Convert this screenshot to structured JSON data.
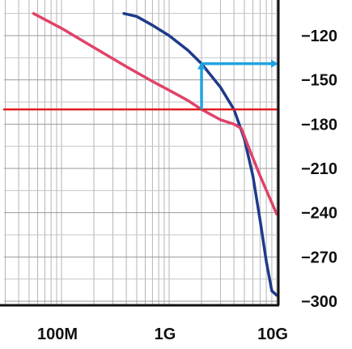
{
  "chart_data": {
    "type": "line",
    "title": "",
    "xlabel": "",
    "ylabel": "",
    "x_scale": "log",
    "x_range_hz": [
      10000000,
      10000000000
    ],
    "y_range": [
      -300,
      -105
    ],
    "x_tick_labels": [
      "100M",
      "1G",
      "10G"
    ],
    "x_tick_values": [
      100000000,
      1000000000,
      10000000000
    ],
    "y_tick_labels": [
      "−120",
      "−150",
      "−180",
      "−210",
      "−240",
      "−270",
      "−300"
    ],
    "y_tick_values": [
      -120,
      -150,
      -180,
      -210,
      -240,
      -270,
      -300
    ],
    "grid": true,
    "legend": "none",
    "series": [
      {
        "color": "#1e3a8a",
        "points": [
          [
            380000000,
            -105
          ],
          [
            500000000,
            -107
          ],
          [
            700000000,
            -113
          ],
          [
            1000000000,
            -120
          ],
          [
            1500000000,
            -130
          ],
          [
            2000000000,
            -139
          ],
          [
            3000000000,
            -155
          ],
          [
            4000000000,
            -170
          ],
          [
            5000000000,
            -190
          ],
          [
            6000000000,
            -215
          ],
          [
            7000000000,
            -245
          ],
          [
            8000000000,
            -273
          ],
          [
            9000000000,
            -293
          ],
          [
            10000000000,
            -296
          ]
        ]
      },
      {
        "color": "#e0426a",
        "points": [
          [
            55000000,
            -105
          ],
          [
            100000000,
            -115
          ],
          [
            200000000,
            -128
          ],
          [
            400000000,
            -141
          ],
          [
            700000000,
            -151
          ],
          [
            1000000000,
            -157
          ],
          [
            1500000000,
            -164
          ],
          [
            2000000000,
            -170
          ],
          [
            3000000000,
            -177
          ],
          [
            4000000000,
            -180
          ],
          [
            4700000000,
            -183
          ],
          [
            5500000000,
            -196
          ],
          [
            7000000000,
            -215
          ],
          [
            10000000000,
            -241
          ]
        ]
      },
      {
        "color": "#e11d1d",
        "points": [
          [
            10000000,
            -170
          ],
          [
            10000000000,
            -170
          ]
        ]
      }
    ],
    "annotations": [
      {
        "type": "arrow",
        "color": "#1fa3e0",
        "from": [
          2000000000,
          -170
        ],
        "to": [
          2000000000,
          -139
        ]
      },
      {
        "type": "arrow",
        "color": "#1fa3e0",
        "from": [
          2000000000,
          -139
        ],
        "to": [
          10000000000,
          -139
        ]
      }
    ]
  }
}
